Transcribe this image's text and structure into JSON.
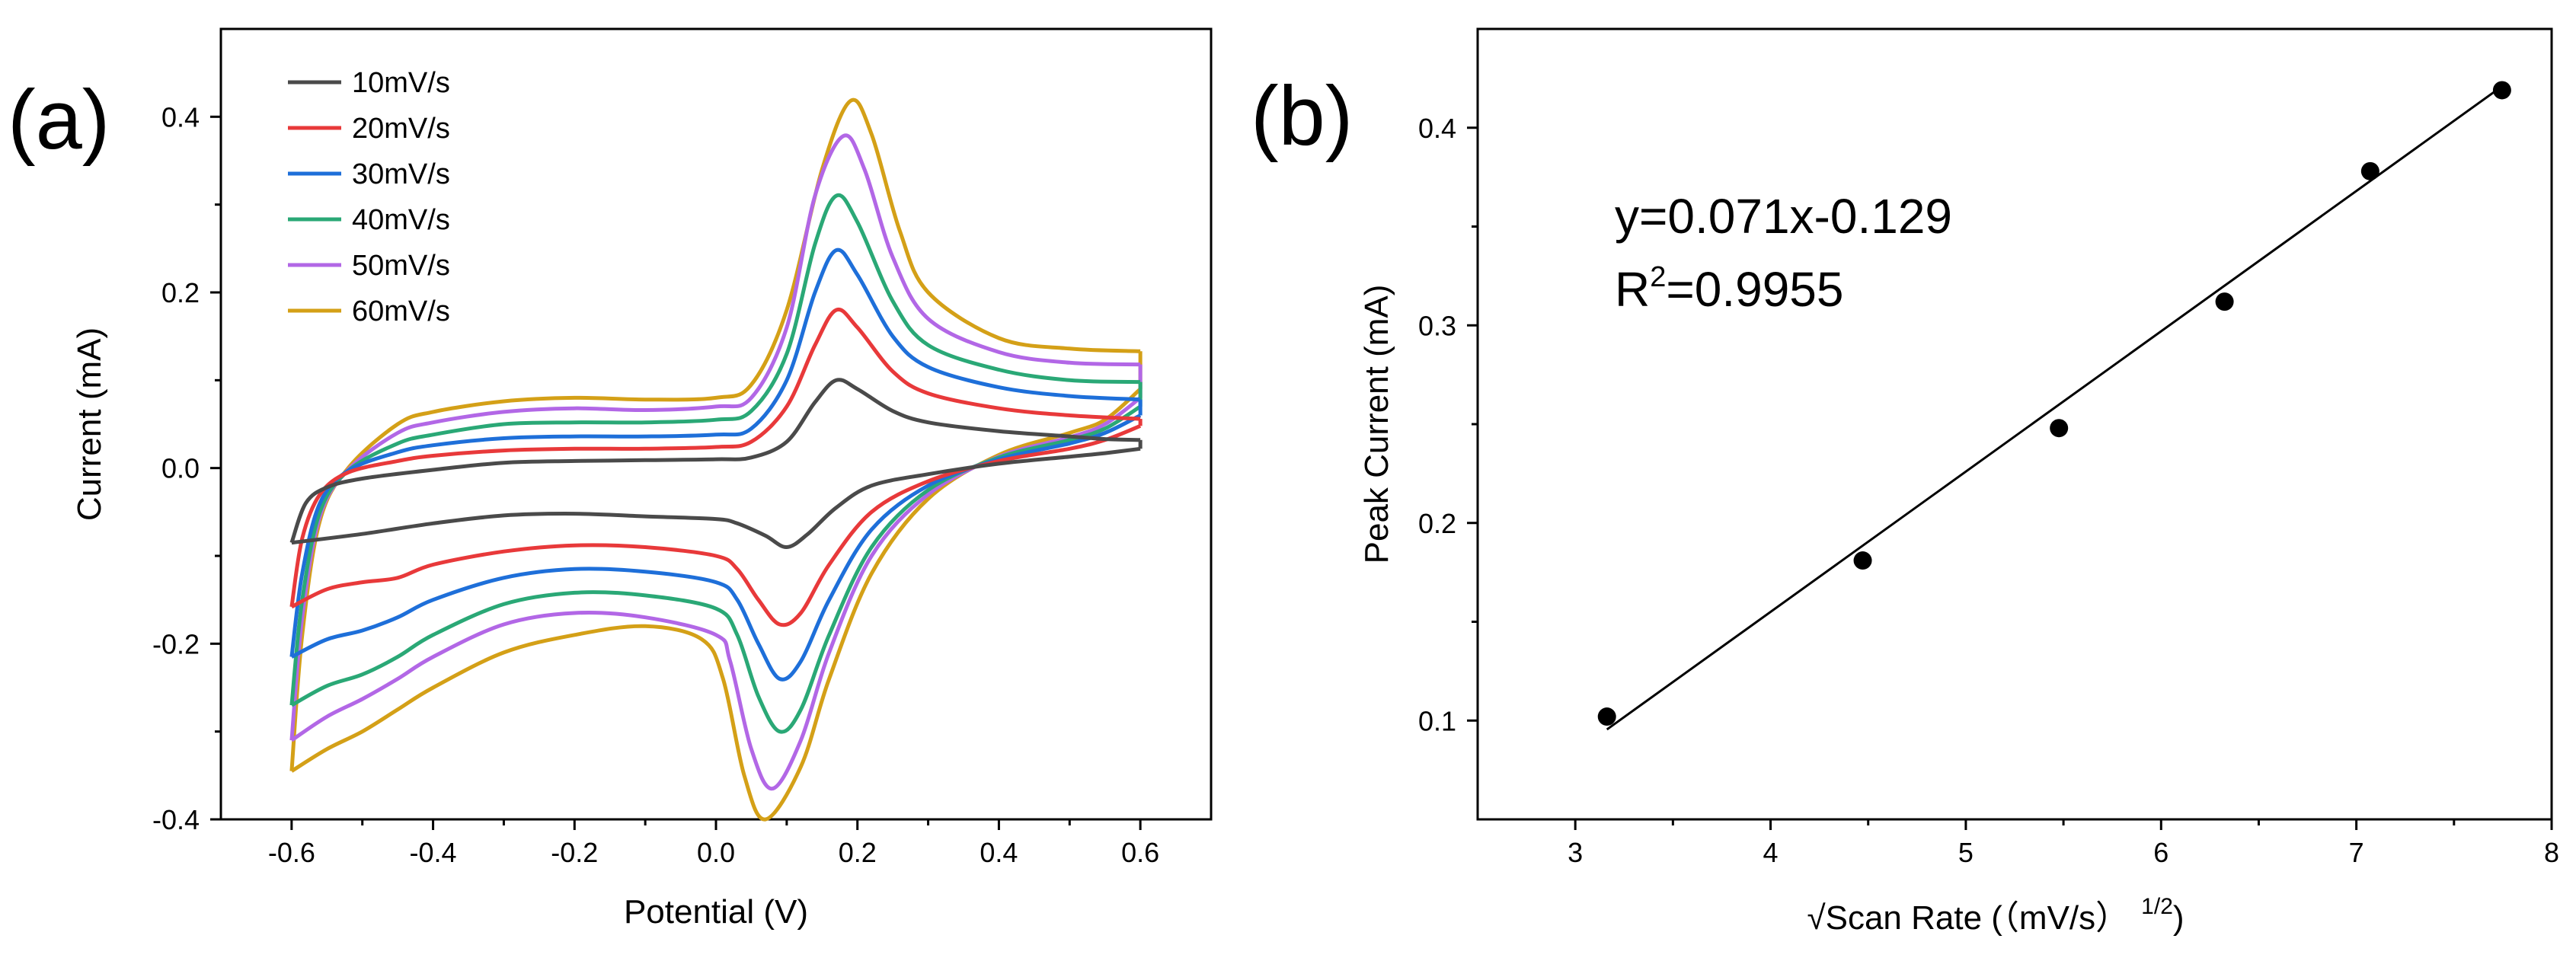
{
  "chart_data": [
    {
      "panel": "(a)",
      "type": "line",
      "title": "",
      "xlabel": "Potential (V)",
      "ylabel": "Current (mA)",
      "xlim": [
        -0.7,
        0.7
      ],
      "ylim": [
        -0.4,
        0.5
      ],
      "xticks": [
        -0.6,
        -0.4,
        -0.2,
        0.0,
        0.2,
        0.4,
        0.6
      ],
      "xtick_labels": [
        "-0.6",
        "-0.4",
        "-0.2",
        "0.0",
        "0.2",
        "0.4",
        "0.6"
      ],
      "yticks": [
        -0.4,
        -0.2,
        0.0,
        0.2,
        0.4
      ],
      "ytick_labels": [
        "-0.4",
        "-0.2",
        "0.0",
        "0.2",
        "0.4"
      ],
      "legend_position": "top-left",
      "series": [
        {
          "name": "10mV/s",
          "color": "#4a4a4a",
          "forward": [
            [
              -0.6,
              -0.085
            ],
            [
              -0.58,
              -0.04
            ],
            [
              -0.55,
              -0.022
            ],
            [
              -0.5,
              -0.012
            ],
            [
              -0.4,
              -0.002
            ],
            [
              -0.3,
              0.006
            ],
            [
              -0.2,
              0.008
            ],
            [
              -0.1,
              0.009
            ],
            [
              0.0,
              0.01
            ],
            [
              0.05,
              0.012
            ],
            [
              0.1,
              0.03
            ],
            [
              0.14,
              0.075
            ],
            [
              0.17,
              0.1
            ],
            [
              0.2,
              0.09
            ],
            [
              0.25,
              0.065
            ],
            [
              0.3,
              0.052
            ],
            [
              0.4,
              0.042
            ],
            [
              0.5,
              0.036
            ],
            [
              0.55,
              0.033
            ],
            [
              0.6,
              0.032
            ]
          ],
          "reverse": [
            [
              0.6,
              0.022
            ],
            [
              0.55,
              0.017
            ],
            [
              0.5,
              0.013
            ],
            [
              0.4,
              0.005
            ],
            [
              0.3,
              -0.007
            ],
            [
              0.22,
              -0.02
            ],
            [
              0.17,
              -0.045
            ],
            [
              0.13,
              -0.075
            ],
            [
              0.1,
              -0.09
            ],
            [
              0.07,
              -0.077
            ],
            [
              0.03,
              -0.063
            ],
            [
              0.0,
              -0.058
            ],
            [
              -0.1,
              -0.055
            ],
            [
              -0.2,
              -0.052
            ],
            [
              -0.3,
              -0.054
            ],
            [
              -0.4,
              -0.063
            ],
            [
              -0.5,
              -0.075
            ],
            [
              -0.6,
              -0.085
            ]
          ]
        },
        {
          "name": "20mV/s",
          "color": "#e8393a",
          "forward": [
            [
              -0.6,
              -0.158
            ],
            [
              -0.585,
              -0.08
            ],
            [
              -0.56,
              -0.03
            ],
            [
              -0.52,
              -0.005
            ],
            [
              -0.45,
              0.008
            ],
            [
              -0.4,
              0.014
            ],
            [
              -0.3,
              0.02
            ],
            [
              -0.2,
              0.022
            ],
            [
              -0.1,
              0.022
            ],
            [
              0.0,
              0.024
            ],
            [
              0.05,
              0.03
            ],
            [
              0.1,
              0.07
            ],
            [
              0.14,
              0.14
            ],
            [
              0.17,
              0.18
            ],
            [
              0.2,
              0.16
            ],
            [
              0.25,
              0.11
            ],
            [
              0.3,
              0.085
            ],
            [
              0.4,
              0.068
            ],
            [
              0.5,
              0.06
            ],
            [
              0.6,
              0.056
            ]
          ],
          "reverse": [
            [
              0.6,
              0.048
            ],
            [
              0.55,
              0.032
            ],
            [
              0.5,
              0.022
            ],
            [
              0.4,
              0.008
            ],
            [
              0.3,
              -0.015
            ],
            [
              0.22,
              -0.05
            ],
            [
              0.16,
              -0.11
            ],
            [
              0.12,
              -0.165
            ],
            [
              0.09,
              -0.178
            ],
            [
              0.06,
              -0.15
            ],
            [
              0.03,
              -0.115
            ],
            [
              0.0,
              -0.1
            ],
            [
              -0.1,
              -0.09
            ],
            [
              -0.2,
              -0.088
            ],
            [
              -0.3,
              -0.095
            ],
            [
              -0.4,
              -0.11
            ],
            [
              -0.45,
              -0.125
            ],
            [
              -0.5,
              -0.13
            ],
            [
              -0.55,
              -0.138
            ],
            [
              -0.6,
              -0.158
            ]
          ]
        },
        {
          "name": "30mV/s",
          "color": "#1e6fd9",
          "forward": [
            [
              -0.6,
              -0.215
            ],
            [
              -0.585,
              -0.12
            ],
            [
              -0.56,
              -0.04
            ],
            [
              -0.52,
              -0.003
            ],
            [
              -0.45,
              0.018
            ],
            [
              -0.4,
              0.026
            ],
            [
              -0.3,
              0.034
            ],
            [
              -0.2,
              0.036
            ],
            [
              -0.1,
              0.036
            ],
            [
              0.0,
              0.038
            ],
            [
              0.05,
              0.045
            ],
            [
              0.1,
              0.1
            ],
            [
              0.14,
              0.2
            ],
            [
              0.17,
              0.248
            ],
            [
              0.2,
              0.22
            ],
            [
              0.25,
              0.15
            ],
            [
              0.3,
              0.115
            ],
            [
              0.4,
              0.092
            ],
            [
              0.5,
              0.082
            ],
            [
              0.6,
              0.078
            ]
          ],
          "reverse": [
            [
              0.6,
              0.06
            ],
            [
              0.55,
              0.04
            ],
            [
              0.5,
              0.028
            ],
            [
              0.4,
              0.01
            ],
            [
              0.3,
              -0.02
            ],
            [
              0.22,
              -0.07
            ],
            [
              0.16,
              -0.15
            ],
            [
              0.12,
              -0.22
            ],
            [
              0.09,
              -0.24
            ],
            [
              0.06,
              -0.2
            ],
            [
              0.03,
              -0.15
            ],
            [
              0.0,
              -0.13
            ],
            [
              -0.1,
              -0.118
            ],
            [
              -0.2,
              -0.115
            ],
            [
              -0.3,
              -0.125
            ],
            [
              -0.4,
              -0.15
            ],
            [
              -0.45,
              -0.17
            ],
            [
              -0.5,
              -0.185
            ],
            [
              -0.55,
              -0.195
            ],
            [
              -0.6,
              -0.215
            ]
          ]
        },
        {
          "name": "40mV/s",
          "color": "#2aa876",
          "forward": [
            [
              -0.6,
              -0.27
            ],
            [
              -0.585,
              -0.15
            ],
            [
              -0.56,
              -0.05
            ],
            [
              -0.52,
              -0.003
            ],
            [
              -0.45,
              0.028
            ],
            [
              -0.4,
              0.038
            ],
            [
              -0.3,
              0.05
            ],
            [
              -0.2,
              0.052
            ],
            [
              -0.1,
              0.052
            ],
            [
              0.0,
              0.055
            ],
            [
              0.05,
              0.065
            ],
            [
              0.1,
              0.13
            ],
            [
              0.14,
              0.255
            ],
            [
              0.17,
              0.31
            ],
            [
              0.2,
              0.28
            ],
            [
              0.25,
              0.19
            ],
            [
              0.3,
              0.14
            ],
            [
              0.4,
              0.112
            ],
            [
              0.5,
              0.1
            ],
            [
              0.6,
              0.098
            ]
          ],
          "reverse": [
            [
              0.6,
              0.07
            ],
            [
              0.55,
              0.045
            ],
            [
              0.5,
              0.032
            ],
            [
              0.4,
              0.012
            ],
            [
              0.3,
              -0.025
            ],
            [
              0.22,
              -0.09
            ],
            [
              0.16,
              -0.19
            ],
            [
              0.12,
              -0.275
            ],
            [
              0.09,
              -0.3
            ],
            [
              0.06,
              -0.26
            ],
            [
              0.03,
              -0.19
            ],
            [
              0.0,
              -0.16
            ],
            [
              -0.1,
              -0.145
            ],
            [
              -0.2,
              -0.142
            ],
            [
              -0.3,
              -0.155
            ],
            [
              -0.4,
              -0.19
            ],
            [
              -0.45,
              -0.215
            ],
            [
              -0.5,
              -0.235
            ],
            [
              -0.55,
              -0.248
            ],
            [
              -0.6,
              -0.27
            ]
          ]
        },
        {
          "name": "50mV/s",
          "color": "#b267e6",
          "forward": [
            [
              -0.6,
              -0.31
            ],
            [
              -0.585,
              -0.17
            ],
            [
              -0.56,
              -0.055
            ],
            [
              -0.52,
              -0.002
            ],
            [
              -0.45,
              0.04
            ],
            [
              -0.4,
              0.052
            ],
            [
              -0.3,
              0.064
            ],
            [
              -0.2,
              0.068
            ],
            [
              -0.1,
              0.066
            ],
            [
              0.0,
              0.07
            ],
            [
              0.05,
              0.08
            ],
            [
              0.1,
              0.16
            ],
            [
              0.14,
              0.31
            ],
            [
              0.18,
              0.378
            ],
            [
              0.21,
              0.34
            ],
            [
              0.25,
              0.24
            ],
            [
              0.3,
              0.17
            ],
            [
              0.4,
              0.132
            ],
            [
              0.5,
              0.12
            ],
            [
              0.6,
              0.118
            ]
          ],
          "reverse": [
            [
              0.6,
              0.08
            ],
            [
              0.55,
              0.05
            ],
            [
              0.5,
              0.035
            ],
            [
              0.4,
              0.013
            ],
            [
              0.3,
              -0.03
            ],
            [
              0.22,
              -0.1
            ],
            [
              0.16,
              -0.21
            ],
            [
              0.12,
              -0.31
            ],
            [
              0.08,
              -0.365
            ],
            [
              0.05,
              -0.32
            ],
            [
              0.02,
              -0.22
            ],
            [
              0.0,
              -0.19
            ],
            [
              -0.1,
              -0.17
            ],
            [
              -0.2,
              -0.165
            ],
            [
              -0.3,
              -0.178
            ],
            [
              -0.4,
              -0.215
            ],
            [
              -0.45,
              -0.24
            ],
            [
              -0.5,
              -0.263
            ],
            [
              -0.55,
              -0.283
            ],
            [
              -0.6,
              -0.31
            ]
          ]
        },
        {
          "name": "60mV/s",
          "color": "#d4a017",
          "forward": [
            [
              -0.6,
              -0.345
            ],
            [
              -0.585,
              -0.19
            ],
            [
              -0.56,
              -0.06
            ],
            [
              -0.52,
              0.0
            ],
            [
              -0.45,
              0.05
            ],
            [
              -0.4,
              0.064
            ],
            [
              -0.3,
              0.076
            ],
            [
              -0.2,
              0.08
            ],
            [
              -0.1,
              0.078
            ],
            [
              0.0,
              0.08
            ],
            [
              0.05,
              0.095
            ],
            [
              0.1,
              0.18
            ],
            [
              0.15,
              0.34
            ],
            [
              0.19,
              0.418
            ],
            [
              0.22,
              0.38
            ],
            [
              0.26,
              0.27
            ],
            [
              0.3,
              0.2
            ],
            [
              0.4,
              0.148
            ],
            [
              0.5,
              0.136
            ],
            [
              0.6,
              0.133
            ]
          ],
          "reverse": [
            [
              0.6,
              0.09
            ],
            [
              0.55,
              0.055
            ],
            [
              0.5,
              0.04
            ],
            [
              0.4,
              0.015
            ],
            [
              0.3,
              -0.035
            ],
            [
              0.22,
              -0.12
            ],
            [
              0.16,
              -0.24
            ],
            [
              0.12,
              -0.34
            ],
            [
              0.07,
              -0.4
            ],
            [
              0.04,
              -0.35
            ],
            [
              0.01,
              -0.24
            ],
            [
              -0.02,
              -0.195
            ],
            [
              -0.1,
              -0.18
            ],
            [
              -0.2,
              -0.19
            ],
            [
              -0.3,
              -0.21
            ],
            [
              -0.4,
              -0.25
            ],
            [
              -0.45,
              -0.275
            ],
            [
              -0.5,
              -0.3
            ],
            [
              -0.55,
              -0.32
            ],
            [
              -0.6,
              -0.345
            ]
          ]
        }
      ]
    },
    {
      "panel": "(b)",
      "type": "scatter",
      "title": "",
      "xlabel": "√Scan Rate (（mV/s）1/2)",
      "xlabel_main": "√Scan Rate (（mV/s）",
      "xlabel_sup": "1/2",
      "xlabel_end": ")",
      "ylabel": "Peak Current (mA)",
      "xlim": [
        2.5,
        8
      ],
      "ylim": [
        0.05,
        0.45
      ],
      "xticks": [
        3,
        4,
        5,
        6,
        7,
        8
      ],
      "xtick_labels": [
        "3",
        "4",
        "5",
        "6",
        "7",
        "8"
      ],
      "yticks": [
        0.1,
        0.2,
        0.3,
        0.4
      ],
      "ytick_labels": [
        "0.1",
        "0.2",
        "0.3",
        "0.4"
      ],
      "points": [
        [
          3.162,
          0.102
        ],
        [
          4.472,
          0.181
        ],
        [
          5.477,
          0.248
        ],
        [
          6.325,
          0.312
        ],
        [
          7.071,
          0.378
        ],
        [
          7.746,
          0.419
        ]
      ],
      "fit": {
        "slope": 0.071,
        "intercept": -0.129,
        "x_range": [
          3.162,
          7.746
        ]
      },
      "annotations": {
        "equation": "y=0.071x-0.129",
        "r2_prefix": "R",
        "r2_sup": "2",
        "r2_value": "=0.9955"
      }
    }
  ],
  "legend_colors": {
    "text": "#000000"
  }
}
